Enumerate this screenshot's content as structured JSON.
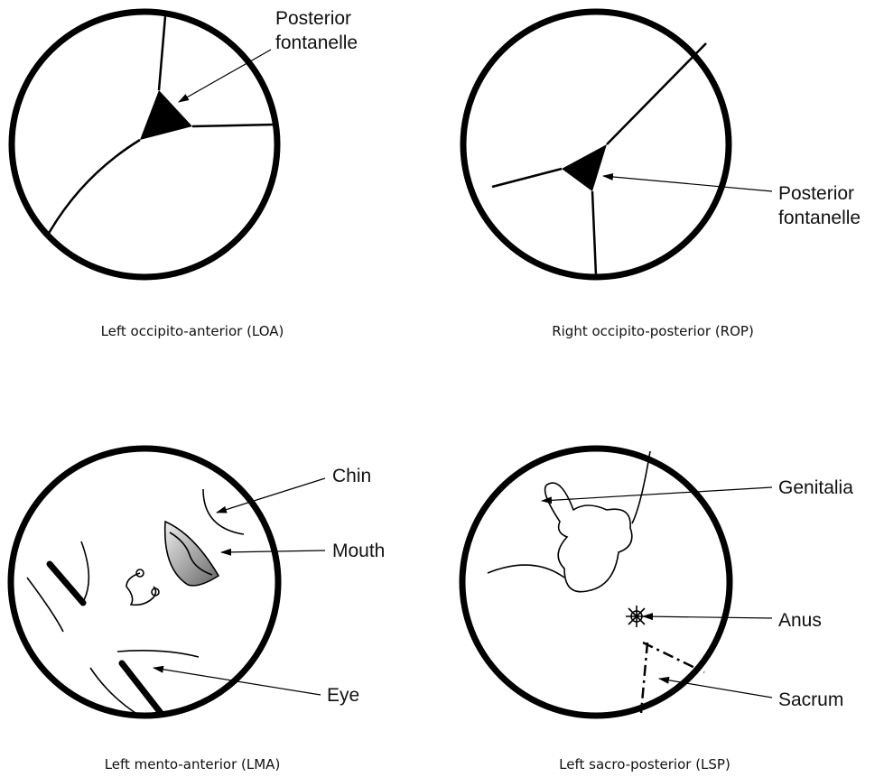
{
  "panels": [
    {
      "caption": "Left occipito-anterior (LOA)",
      "labels": [
        [
          "Posterior",
          "fontanelle"
        ]
      ]
    },
    {
      "caption": "Right occipito-posterior (ROP)",
      "labels": [
        [
          "Posterior",
          "fontanelle"
        ]
      ]
    },
    {
      "caption": "Left mento-anterior (LMA)",
      "labels": [
        [
          "Chin"
        ],
        [
          "Mouth"
        ],
        [
          "Eye"
        ]
      ]
    },
    {
      "caption": "Left sacro-posterior (LSP)",
      "labels": [
        [
          "Genitalia"
        ],
        [
          "Anus"
        ],
        [
          "Sacrum"
        ]
      ]
    }
  ]
}
